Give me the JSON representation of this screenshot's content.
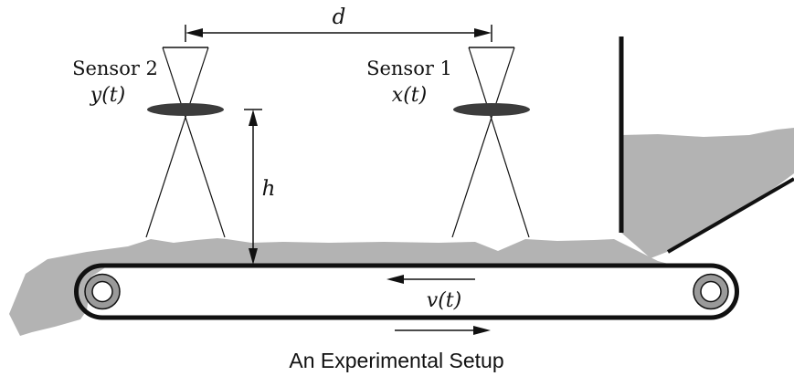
{
  "figure": {
    "caption": "An Experimental Setup"
  },
  "labels": {
    "sensor2_name": "Sensor 2",
    "sensor2_signal": "y(t)",
    "sensor1_name": "Sensor 1",
    "sensor1_signal": "x(t)",
    "distance": "d",
    "height": "h",
    "velocity": "v(t)"
  },
  "colors": {
    "material": "#b3b3b3",
    "belt": "#111111",
    "roller_fill": "#9a9a9a",
    "lens": "#3c3c3c"
  }
}
